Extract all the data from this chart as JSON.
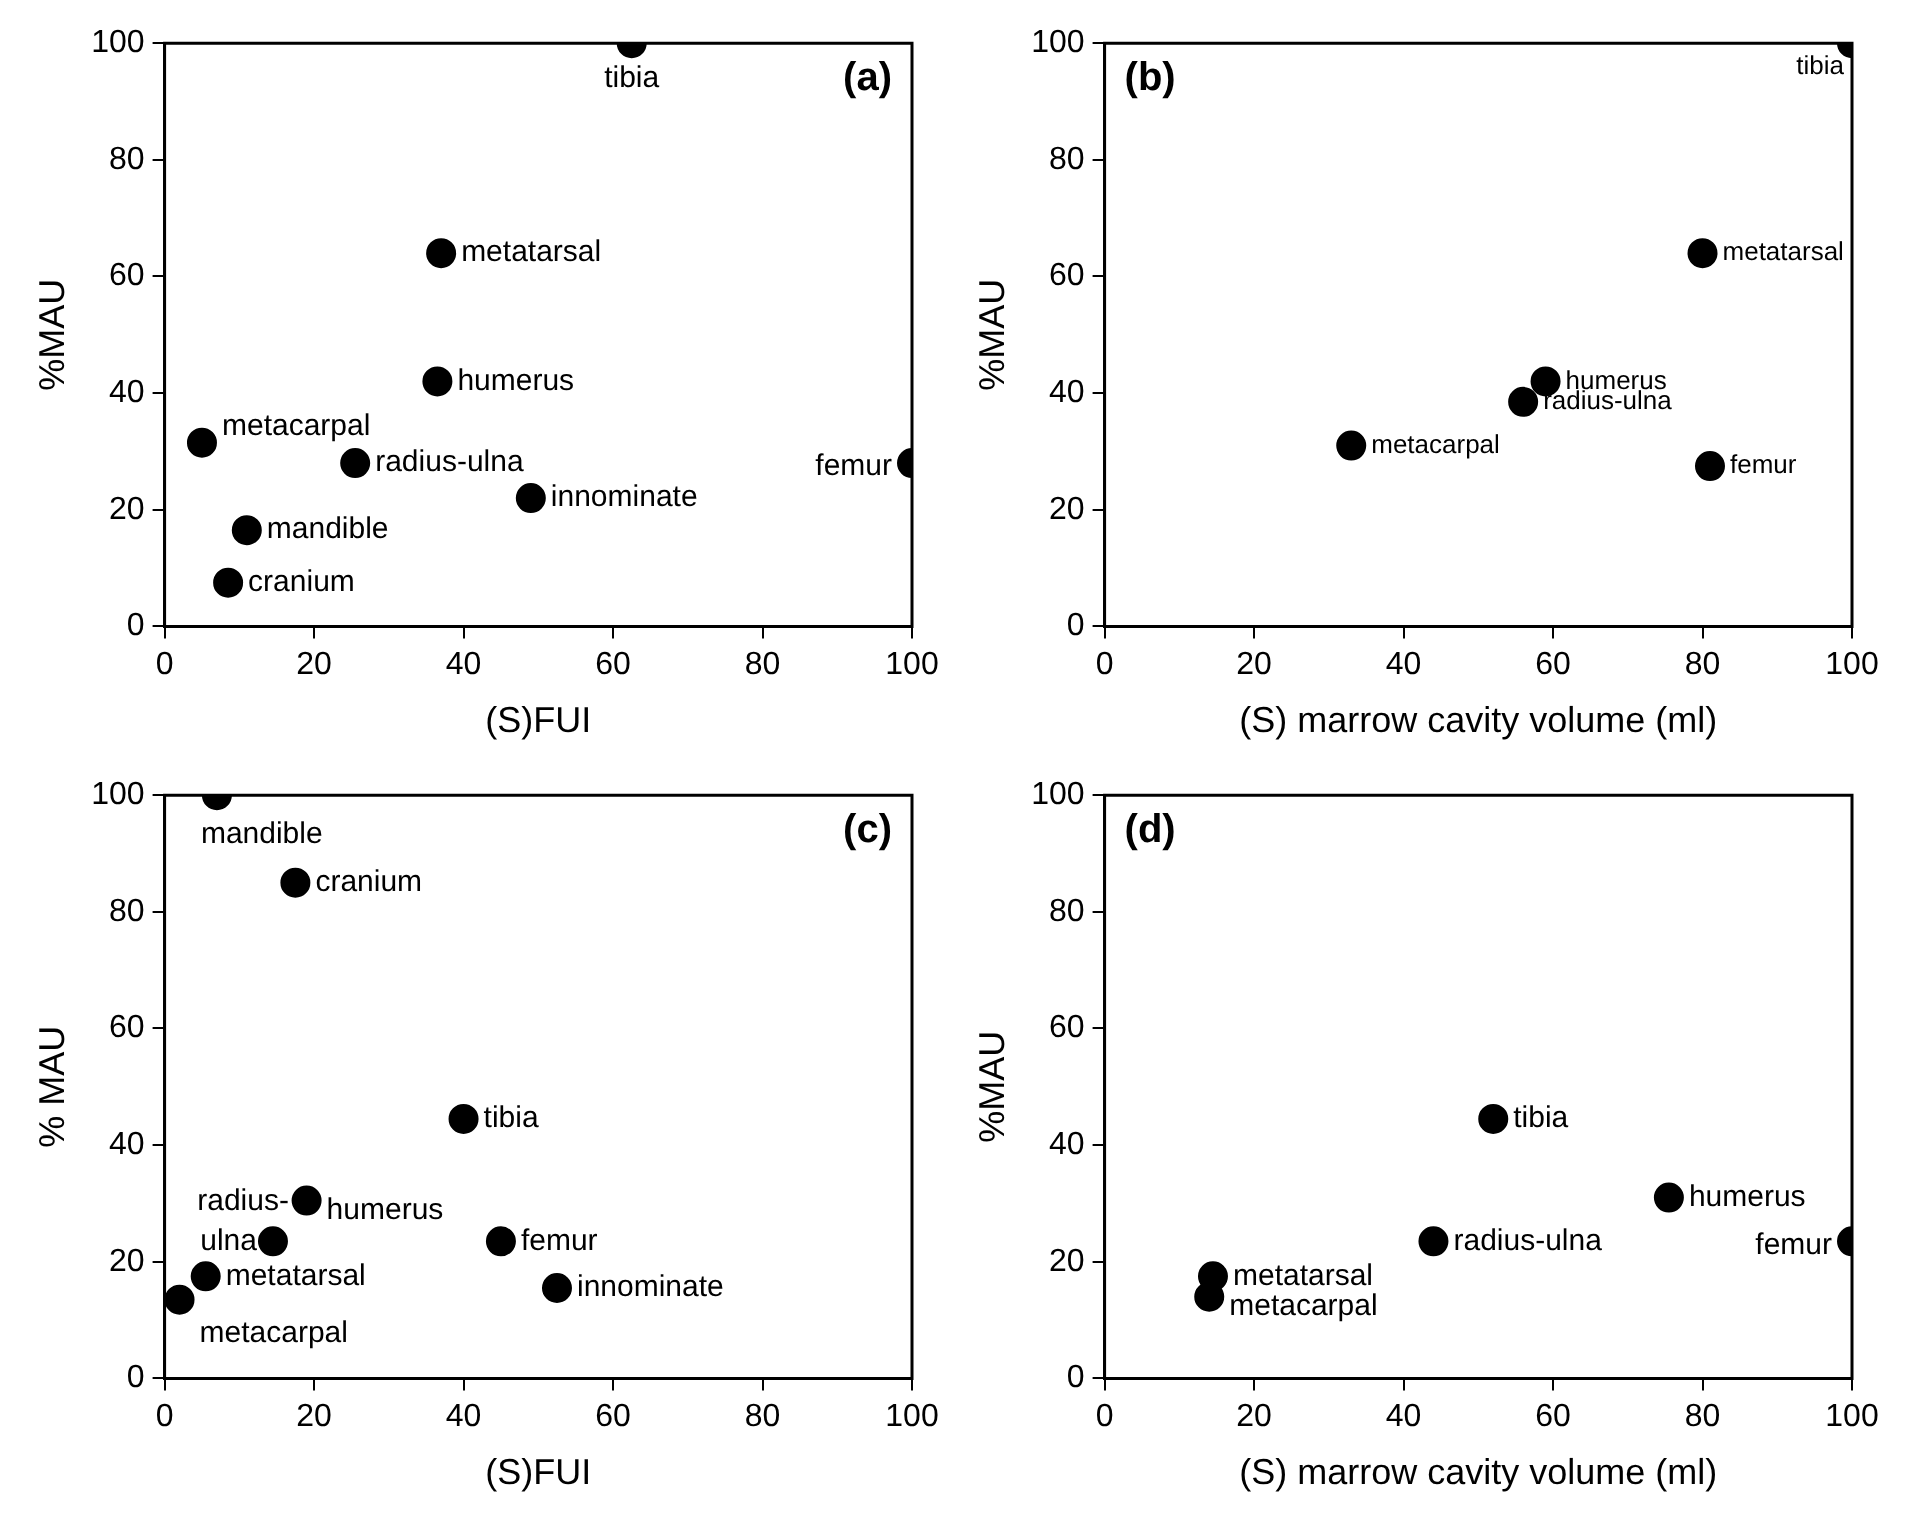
{
  "chart_data": [
    {
      "type": "scatter",
      "xlabel": "(S)FUI",
      "ylabel": "%MAU",
      "xlim": [
        0,
        100
      ],
      "ylim": [
        0,
        100
      ],
      "xticks": [
        0,
        20,
        40,
        60,
        80,
        100
      ],
      "yticks": [
        0,
        20,
        40,
        60,
        80,
        100
      ],
      "marker": "circle",
      "grid": false,
      "legend": false,
      "series": [
        {
          "color": "#000000",
          "x": [
            62.5,
            37,
            36.5,
            5,
            25.5,
            100,
            49,
            11,
            8.5
          ],
          "values": [
            100,
            64,
            42,
            31.5,
            28,
            28,
            22,
            16.5,
            7.5
          ]
        }
      ],
      "annotations": [
        "(a)",
        {
          "text": "tibia",
          "x": 62.5,
          "y": 100
        },
        {
          "text": "metatarsal",
          "x": 37,
          "y": 64
        },
        {
          "text": "humerus",
          "x": 36.5,
          "y": 42
        },
        {
          "text": "metacarpal",
          "x": 5,
          "y": 31.5
        },
        {
          "text": "radius-ulna",
          "x": 25.5,
          "y": 28
        },
        {
          "text": "femur",
          "x": 100,
          "y": 28
        },
        {
          "text": "innominate",
          "x": 49,
          "y": 22
        },
        {
          "text": "mandible",
          "x": 11,
          "y": 16.5
        },
        {
          "text": "cranium",
          "x": 8.5,
          "y": 7.5
        }
      ]
    },
    {
      "type": "scatter",
      "xlabel": "(S) marrow cavity volume (ml)",
      "ylabel": "%MAU",
      "xlim": [
        0,
        100
      ],
      "ylim": [
        0,
        100
      ],
      "xticks": [
        0,
        20,
        40,
        60,
        80,
        100
      ],
      "yticks": [
        0,
        20,
        40,
        60,
        80,
        100
      ],
      "marker": "circle",
      "grid": false,
      "legend": false,
      "series": [
        {
          "color": "#000000",
          "x": [
            100,
            80,
            59,
            56,
            33,
            81
          ],
          "values": [
            100,
            64,
            42,
            38.5,
            31,
            27.5
          ]
        }
      ],
      "annotations": [
        "(b)",
        {
          "text": "tibia",
          "x": 100,
          "y": 100
        },
        {
          "text": "metatarsal",
          "x": 80,
          "y": 64
        },
        {
          "text": "humerus",
          "x": 59,
          "y": 42
        },
        {
          "text": "radius-ulna",
          "x": 56,
          "y": 38.5
        },
        {
          "text": "metacarpal",
          "x": 33,
          "y": 31
        },
        {
          "text": "femur",
          "x": 81,
          "y": 27.5
        }
      ]
    },
    {
      "type": "scatter",
      "xlabel": "(S)FUI",
      "ylabel": "% MAU",
      "xlim": [
        0,
        100
      ],
      "ylim": [
        0,
        100
      ],
      "xticks": [
        0,
        20,
        40,
        60,
        80,
        100
      ],
      "yticks": [
        0,
        20,
        40,
        60,
        80,
        100
      ],
      "marker": "circle",
      "grid": false,
      "legend": false,
      "series": [
        {
          "color": "#000000",
          "x": [
            7,
            17.5,
            40,
            19,
            14.5,
            45,
            5.5,
            52.5,
            2
          ],
          "values": [
            100,
            85,
            44.5,
            30.5,
            23.5,
            23.5,
            17.5,
            15.5,
            13.5
          ]
        }
      ],
      "annotations": [
        "(c)",
        {
          "text": "mandible",
          "x": 7,
          "y": 100
        },
        {
          "text": "cranium",
          "x": 17.5,
          "y": 85
        },
        {
          "text": "tibia",
          "x": 40,
          "y": 44.5
        },
        {
          "text": "humerus",
          "x": 19,
          "y": 30.5
        },
        {
          "text": "radius-ulna",
          "x": 14.5,
          "y": 23.5
        },
        {
          "text": "femur",
          "x": 45,
          "y": 23.5
        },
        {
          "text": "metatarsal",
          "x": 5.5,
          "y": 17.5
        },
        {
          "text": "innominate",
          "x": 52.5,
          "y": 15.5
        },
        {
          "text": "metacarpal",
          "x": 2,
          "y": 13.5
        }
      ]
    },
    {
      "type": "scatter",
      "xlabel": "(S) marrow cavity volume (ml)",
      "ylabel": "%MAU",
      "xlim": [
        0,
        100
      ],
      "ylim": [
        0,
        100
      ],
      "xticks": [
        0,
        20,
        40,
        60,
        80,
        100
      ],
      "yticks": [
        0,
        20,
        40,
        60,
        80,
        100
      ],
      "marker": "circle",
      "grid": false,
      "legend": false,
      "series": [
        {
          "color": "#000000",
          "x": [
            52,
            75.5,
            44,
            100,
            14.5,
            14
          ],
          "values": [
            44.5,
            31,
            23.5,
            23.5,
            17.5,
            14
          ]
        }
      ],
      "annotations": [
        "(d)",
        {
          "text": "tibia",
          "x": 52,
          "y": 44.5
        },
        {
          "text": "humerus",
          "x": 75.5,
          "y": 31
        },
        {
          "text": "radius-ulna",
          "x": 44,
          "y": 23.5
        },
        {
          "text": "femur",
          "x": 100,
          "y": 23.5
        },
        {
          "text": "metatarsal",
          "x": 14.5,
          "y": 17.5
        },
        {
          "text": "metacarpal",
          "x": 14,
          "y": 14
        }
      ]
    }
  ]
}
